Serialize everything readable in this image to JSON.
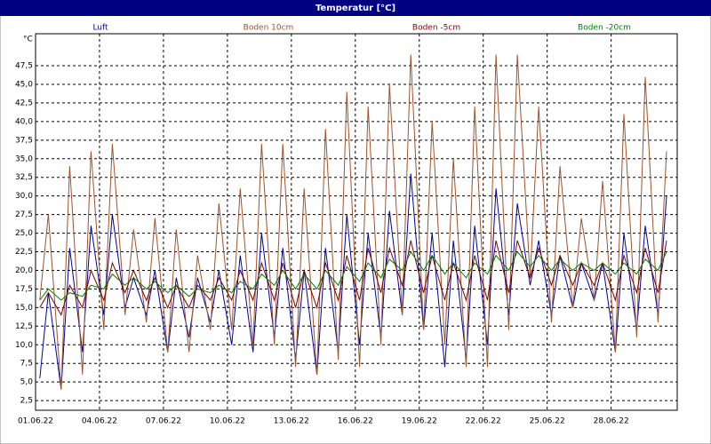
{
  "chart_data": {
    "type": "line",
    "title": "Temperatur [°C]",
    "y_label": "°C",
    "x": [
      0.2,
      0.6,
      1.2,
      1.6,
      2.2,
      2.6,
      3.2,
      3.6,
      4.2,
      4.6,
      5.2,
      5.6,
      6.2,
      6.6,
      7.2,
      7.6,
      8.2,
      8.6,
      9.2,
      9.6,
      10.2,
      10.6,
      11.2,
      11.6,
      12.2,
      12.6,
      13.2,
      13.6,
      14.2,
      14.6,
      15.2,
      15.6,
      16.2,
      16.6,
      17.2,
      17.6,
      18.2,
      18.6,
      19.2,
      19.6,
      20.2,
      20.6,
      21.2,
      21.6,
      22.2,
      22.6,
      23.2,
      23.6,
      24.2,
      24.6,
      25.2,
      25.6,
      26.2,
      26.6,
      27.2,
      27.6,
      28.2,
      28.6,
      29.2,
      29.6
    ],
    "series": [
      {
        "name": "Luft",
        "color": "#0000a0",
        "values": [
          5.5,
          17,
          4,
          23,
          9,
          26,
          14,
          27.5,
          15,
          19,
          14,
          20,
          9,
          19,
          11,
          19,
          13,
          20,
          10,
          22,
          9,
          25,
          11,
          23,
          8,
          20,
          6,
          23,
          9,
          27.5,
          10,
          25,
          11,
          28,
          14,
          33,
          12,
          25,
          7,
          24,
          8,
          26,
          10,
          31,
          14,
          29,
          18,
          24,
          14,
          22,
          15,
          21,
          16,
          21,
          9,
          25,
          12,
          26,
          14,
          30
        ]
      },
      {
        "name": "Boden 10cm",
        "color": "#a0522d",
        "values": [
          16,
          27.5,
          4,
          34,
          6,
          36,
          12,
          37,
          14,
          25.5,
          13,
          27,
          9,
          25.5,
          9,
          22,
          12,
          29,
          12,
          31,
          10,
          37,
          10,
          37,
          7,
          31,
          6,
          39,
          8,
          44,
          7,
          42,
          10,
          45,
          14,
          49,
          12,
          40,
          10,
          35,
          7,
          42,
          7,
          49,
          12,
          49,
          19,
          42,
          13,
          34,
          15,
          27,
          16,
          32,
          9,
          41,
          11,
          46,
          13,
          36
        ]
      },
      {
        "name": "Boden -5cm",
        "color": "#800000",
        "values": [
          15,
          17,
          14,
          18,
          15,
          20,
          16,
          21,
          17,
          20,
          16,
          19,
          15,
          18,
          15,
          18,
          16,
          19,
          16,
          20,
          16,
          21,
          16,
          21,
          15,
          20,
          15,
          21,
          16,
          22,
          16,
          23,
          17,
          23,
          18,
          24,
          17,
          22,
          16,
          21,
          16,
          22,
          16,
          24,
          17,
          24,
          19,
          23,
          18,
          22,
          18,
          21,
          18,
          21,
          16,
          22,
          17,
          23,
          17,
          24
        ]
      },
      {
        "name": "Boden -20cm",
        "color": "#008000",
        "values": [
          16,
          17.5,
          16,
          17,
          16.5,
          18,
          17.5,
          19.5,
          18,
          19,
          17.5,
          18.5,
          17,
          18,
          16.5,
          17.5,
          17,
          18,
          17,
          18.5,
          17.5,
          19.5,
          18,
          20,
          17.5,
          19.5,
          17.5,
          20,
          18,
          20.5,
          18.5,
          21,
          19,
          21.5,
          20,
          22.5,
          20,
          22,
          19.5,
          21,
          19,
          21,
          19.5,
          22,
          20,
          22.5,
          20.5,
          22,
          20,
          21.5,
          20,
          21,
          20,
          21,
          19.5,
          21,
          19.5,
          21.5,
          20,
          22.5
        ]
      }
    ],
    "xlim": [
      0,
      30.1
    ],
    "xticks": [
      {
        "value": 0,
        "label": "01.06.22"
      },
      {
        "value": 3,
        "label": "04.06.22"
      },
      {
        "value": 6,
        "label": "07.06.22"
      },
      {
        "value": 9,
        "label": "10.06.22"
      },
      {
        "value": 12,
        "label": "13.06.22"
      },
      {
        "value": 15,
        "label": "16.06.22"
      },
      {
        "value": 18,
        "label": "19.06.22"
      },
      {
        "value": 21,
        "label": "22.06.22"
      },
      {
        "value": 24,
        "label": "25.06.22"
      },
      {
        "value": 27,
        "label": "28.06.22"
      }
    ],
    "ylim": [
      1.2,
      51.8
    ],
    "yticks": [
      {
        "value": 2.5,
        "label": "2,5"
      },
      {
        "value": 5,
        "label": "5,0"
      },
      {
        "value": 7.5,
        "label": "7,5"
      },
      {
        "value": 10,
        "label": "10,0"
      },
      {
        "value": 12.5,
        "label": "12,5"
      },
      {
        "value": 15,
        "label": "15,0"
      },
      {
        "value": 17.5,
        "label": "17,5"
      },
      {
        "value": 20,
        "label": "20,0"
      },
      {
        "value": 22.5,
        "label": "22,5"
      },
      {
        "value": 25,
        "label": "25,0"
      },
      {
        "value": 27.5,
        "label": "27,5"
      },
      {
        "value": 30,
        "label": "30,0"
      },
      {
        "value": 32.5,
        "label": "32,5"
      },
      {
        "value": 35,
        "label": "35,0"
      },
      {
        "value": 37.5,
        "label": "37,5"
      },
      {
        "value": 40,
        "label": "40,0"
      },
      {
        "value": 42.5,
        "label": "42,5"
      },
      {
        "value": 45,
        "label": "45,0"
      },
      {
        "value": 47.5,
        "label": "47,5"
      }
    ],
    "grid": true
  }
}
